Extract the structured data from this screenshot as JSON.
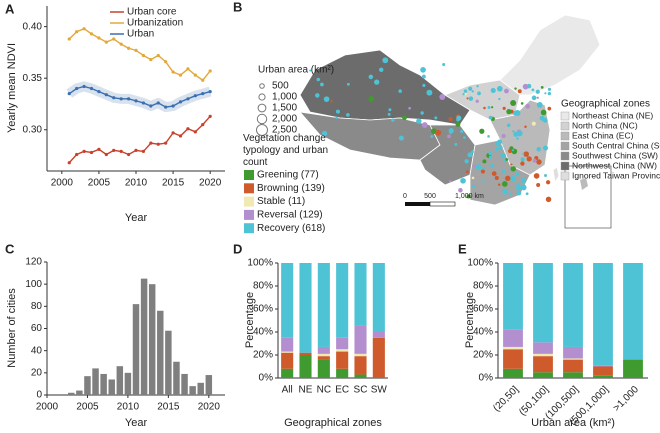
{
  "chart_data": [
    {
      "type": "line",
      "panel_label": "A",
      "x_label": "Year",
      "y_label": "Yearly mean NDVI",
      "x": [
        2001,
        2002,
        2003,
        2004,
        2005,
        2006,
        2007,
        2008,
        2009,
        2010,
        2011,
        2012,
        2013,
        2014,
        2015,
        2016,
        2017,
        2018,
        2019,
        2020
      ],
      "series": [
        {
          "name": "Urban core",
          "color": "#c8412b",
          "values": [
            0.268,
            0.276,
            0.279,
            0.278,
            0.281,
            0.276,
            0.28,
            0.279,
            0.276,
            0.28,
            0.279,
            0.287,
            0.286,
            0.287,
            0.297,
            0.294,
            0.301,
            0.298,
            0.305,
            0.313
          ]
        },
        {
          "name": "Urbanization",
          "color": "#e3a83a",
          "values": [
            0.388,
            0.395,
            0.398,
            0.393,
            0.389,
            0.385,
            0.388,
            0.383,
            0.379,
            0.377,
            0.372,
            0.368,
            0.372,
            0.366,
            0.356,
            0.353,
            0.359,
            0.353,
            0.348,
            0.357
          ]
        },
        {
          "name": "Urban",
          "color": "#3a6fb0",
          "values": [
            0.335,
            0.34,
            0.342,
            0.34,
            0.337,
            0.334,
            0.331,
            0.33,
            0.33,
            0.328,
            0.326,
            0.323,
            0.326,
            0.322,
            0.323,
            0.327,
            0.33,
            0.333,
            0.335,
            0.337
          ]
        }
      ],
      "xlim": [
        1998,
        2022
      ],
      "xticks": [
        2000,
        2005,
        2010,
        2015,
        2020
      ],
      "ylim": [
        0.26,
        0.42
      ],
      "yticks": [
        {
          "value": 0.3,
          "label": "0.30"
        },
        0.35,
        {
          "value": 0.4,
          "label": "0.40"
        }
      ]
    },
    {
      "type": "map",
      "panel_label": "B",
      "size_legend_title": "Urban area (km²)",
      "size_legend": [
        500,
        {
          "value": 1000,
          "label": "1,000"
        },
        {
          "value": 1500,
          "label": "1,500"
        },
        {
          "value": 2000,
          "label": "2,000"
        },
        {
          "value": 2500,
          "label": "2,500"
        }
      ],
      "typology_title": "Vegetation change typology and urban count",
      "zones_title": "Geographical zones",
      "zones": [
        {
          "label": "Northeast China (NE)",
          "color": "#e9e9e9"
        },
        {
          "label": "North China (NC)",
          "color": "#d2d2d2"
        },
        {
          "label": "East China (EC)",
          "color": "#bababa"
        },
        {
          "label": "South Central China (SC)",
          "color": "#a4a4a4"
        },
        {
          "label": "Southwest China (SW)",
          "color": "#8a8a8a"
        },
        {
          "label": "Northwest China (NW)",
          "color": "#6c6c6c"
        },
        {
          "label": "Ignored Taiwan Province",
          "color": "#dedede"
        }
      ],
      "scale_bar": [
        0,
        500,
        {
          "value": 1000,
          "label": "1,000 km"
        }
      ]
    },
    {
      "type": "bar",
      "panel_label": "C",
      "x_label": "Year",
      "y_label": "Number of cities",
      "x": [
        2003,
        2004,
        2005,
        2006,
        2007,
        2008,
        2009,
        2010,
        2011,
        2012,
        2013,
        2014,
        2015,
        2016,
        2017,
        2018,
        2019,
        2020
      ],
      "values": [
        2,
        4,
        17,
        24,
        19,
        14,
        26,
        20,
        82,
        105,
        100,
        76,
        58,
        30,
        19,
        8,
        11,
        18
      ],
      "color": "#7f7f7f",
      "xlim": [
        2000,
        2022
      ],
      "xticks": [
        2000,
        2005,
        2010,
        2015,
        2020
      ],
      "ylim": [
        0,
        120
      ],
      "yticks": [
        0,
        20,
        40,
        60,
        80,
        100,
        120
      ]
    },
    {
      "type": "stacked_bar",
      "panel_label": "D",
      "x_label": "Geographical zones",
      "y_label": "Percentage",
      "categories": [
        "All",
        "NE",
        "NC",
        "EC",
        "SC",
        "SW"
      ],
      "series": [
        {
          "name": "Greening (77)",
          "color": "#3f9a2f",
          "values": [
            8,
            20,
            16,
            8,
            3,
            0
          ]
        },
        {
          "name": "Browning (139)",
          "color": "#cf5a2c",
          "values": [
            14,
            2,
            3,
            15,
            16,
            35
          ]
        },
        {
          "name": "Stable (11)",
          "color": "#f1e9b4",
          "values": [
            1,
            0,
            2,
            2,
            2,
            0
          ]
        },
        {
          "name": "Reversal (129)",
          "color": "#b48fd0",
          "values": [
            12,
            0,
            6,
            10,
            25,
            5
          ]
        },
        {
          "name": "Recovery (618)",
          "color": "#4fc3d6",
          "values": [
            65,
            78,
            73,
            65,
            54,
            60
          ]
        }
      ],
      "ylim": [
        0,
        100
      ],
      "yticks": [
        {
          "value": 0,
          "label": "0%"
        },
        {
          "value": 20,
          "label": "20%"
        },
        {
          "value": 40,
          "label": "40%"
        },
        {
          "value": 60,
          "label": "60%"
        },
        {
          "value": 80,
          "label": "80%"
        },
        {
          "value": 100,
          "label": "100%"
        }
      ]
    },
    {
      "type": "stacked_bar",
      "panel_label": "E",
      "x_label": "Urban area (km²)",
      "y_label": "Percentage",
      "categories": [
        "(20,50]",
        "(50,100]",
        "(100,500]",
        "(500,1,000]",
        ">1,000"
      ],
      "series": [
        {
          "color": "#3f9a2f",
          "values": [
            8,
            5,
            5,
            2,
            16
          ]
        },
        {
          "color": "#cf5a2c",
          "values": [
            17,
            14,
            11,
            8,
            0
          ]
        },
        {
          "color": "#f1e9b4",
          "values": [
            2,
            2,
            1,
            0,
            0
          ]
        },
        {
          "color": "#b48fd0",
          "values": [
            15,
            10,
            10,
            1,
            0
          ]
        },
        {
          "color": "#4fc3d6",
          "values": [
            58,
            69,
            73,
            89,
            84
          ]
        }
      ],
      "ylim": [
        0,
        100
      ],
      "yticks": [
        {
          "value": 0,
          "label": "0%"
        },
        {
          "value": 20,
          "label": "20%"
        },
        {
          "value": 40,
          "label": "40%"
        },
        {
          "value": 60,
          "label": "60%"
        },
        {
          "value": 80,
          "label": "80%"
        },
        {
          "value": 100,
          "label": "100%"
        }
      ]
    }
  ]
}
